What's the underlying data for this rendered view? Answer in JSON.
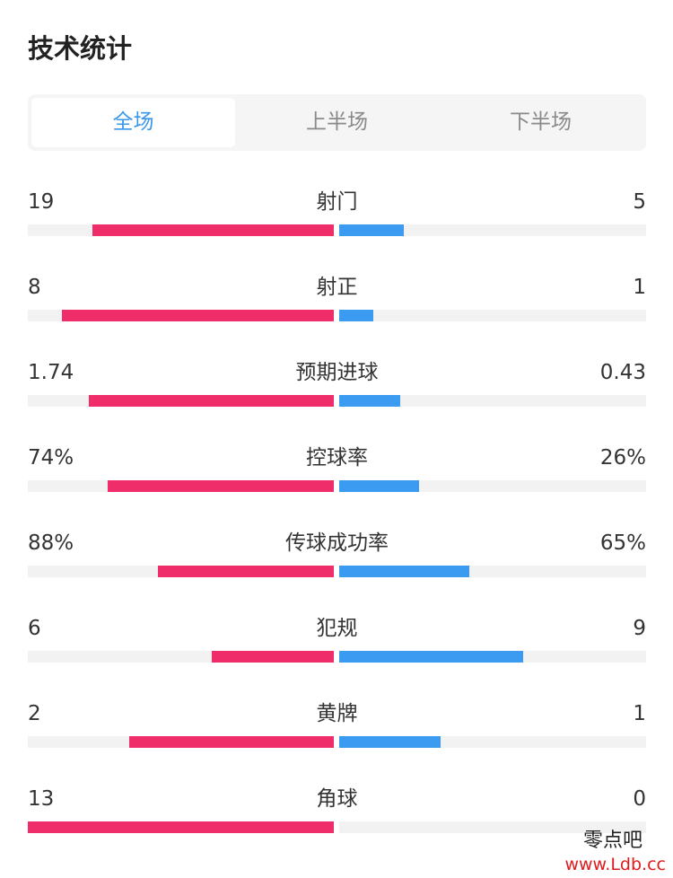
{
  "title": "技术统计",
  "tabs": [
    {
      "label": "全场",
      "active": true
    },
    {
      "label": "上半场",
      "active": false
    },
    {
      "label": "下半场",
      "active": false
    }
  ],
  "stats": [
    {
      "label": "射门",
      "home": "19",
      "away": "5",
      "home_fill": 0.79,
      "away_fill": 0.21
    },
    {
      "label": "射正",
      "home": "8",
      "away": "1",
      "home_fill": 0.89,
      "away_fill": 0.11
    },
    {
      "label": "预期进球",
      "home": "1.74",
      "away": "0.43",
      "home_fill": 0.8,
      "away_fill": 0.2
    },
    {
      "label": "控球率",
      "home": "74%",
      "away": "26%",
      "home_fill": 0.74,
      "away_fill": 0.26
    },
    {
      "label": "传球成功率",
      "home": "88%",
      "away": "65%",
      "home_fill": 0.575,
      "away_fill": 0.425
    },
    {
      "label": "犯规",
      "home": "6",
      "away": "9",
      "home_fill": 0.4,
      "away_fill": 0.6
    },
    {
      "label": "黄牌",
      "home": "2",
      "away": "1",
      "home_fill": 0.67,
      "away_fill": 0.33
    },
    {
      "label": "角球",
      "home": "13",
      "away": "0",
      "home_fill": 1.0,
      "away_fill": 0.0
    }
  ],
  "colors": {
    "home": "#f02d6b",
    "away": "#3a9bf0",
    "active_tab": "#3b97ea"
  },
  "watermark": {
    "name": "零点吧",
    "url": "www.Ldb.cc"
  }
}
